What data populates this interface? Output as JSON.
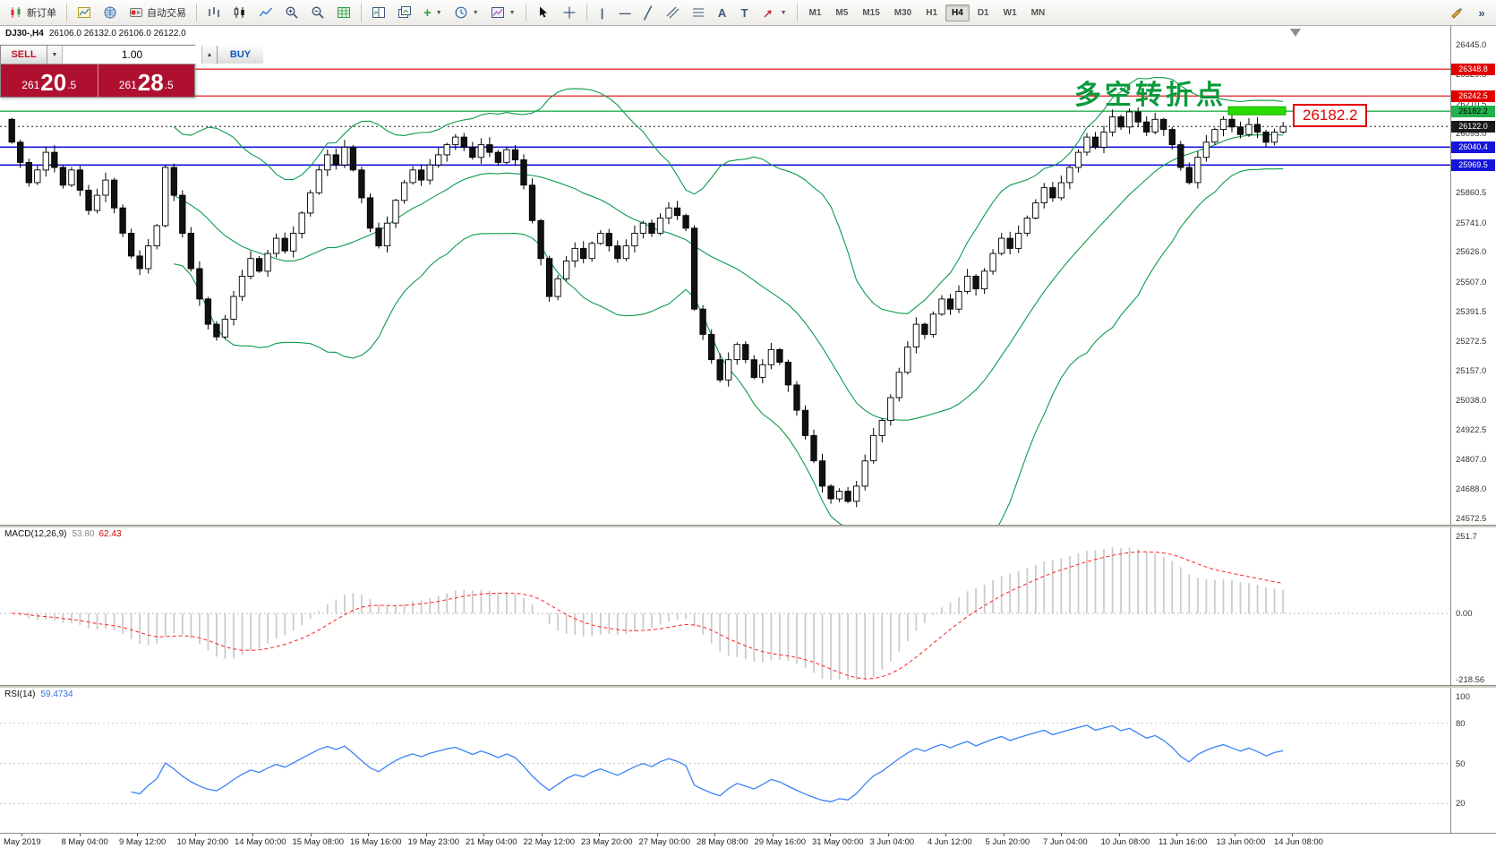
{
  "toolbar": {
    "new_order_label": "新订单",
    "autotrading_label": "自动交易",
    "text_tool": "A",
    "label_tool": "T",
    "timeframes": [
      "M1",
      "M5",
      "M15",
      "M30",
      "H1",
      "H4",
      "D1",
      "W1",
      "MN"
    ],
    "active_timeframe": "H4"
  },
  "chart_header": {
    "symbol": "DJ30-,H4",
    "ohlc": "26106.0 26132.0 26106.0 26122.0"
  },
  "trade_panel": {
    "sell_label": "SELL",
    "buy_label": "BUY",
    "lot": "1.00",
    "sell_price": {
      "small": "261",
      "big": "20",
      "dec": ".5"
    },
    "buy_price": {
      "small": "261",
      "big": "28",
      "dec": ".5"
    }
  },
  "annotation": {
    "text": "多空转折点",
    "price_tag": "26182.2"
  },
  "price_axis": {
    "ticks": [
      "26445.0",
      "26329.5",
      "26210.5",
      "26095.0",
      "25860.5",
      "25741.0",
      "25626.0",
      "25507.0",
      "25391.5",
      "25272.5",
      "25157.0",
      "25038.0",
      "24922.5",
      "24807.0",
      "24688.0",
      "24572.5"
    ]
  },
  "levels": [
    {
      "label": "26348.8",
      "price": 26348.8,
      "type": "resistance",
      "color": "#e10000",
      "badge_text": "#ffffff",
      "line": "solid"
    },
    {
      "label": "26242.5",
      "price": 26242.5,
      "type": "resistance",
      "color": "#e10000",
      "badge_text": "#ffffff",
      "line": "solid"
    },
    {
      "label": "26182.2",
      "price": 26182.2,
      "type": "key-level",
      "color": "#22b14c",
      "badge_text": "#000000",
      "line": "solid"
    },
    {
      "label": "26122.0",
      "price": 26122.0,
      "type": "current-price",
      "color": "#1a1a1a",
      "badge_text": "#ffffff",
      "line": "dotted"
    },
    {
      "label": "26040.4",
      "price": 26040.4,
      "type": "support",
      "color": "#1414dc",
      "badge_text": "#ffffff",
      "line": "solid"
    },
    {
      "label": "25969.5",
      "price": 25969.5,
      "type": "support",
      "color": "#1414dc",
      "badge_text": "#ffffff",
      "line": "solid"
    }
  ],
  "indicators": {
    "macd": {
      "name": "MACD(12,26,9)",
      "value1": "53.80",
      "value2": "62.43",
      "axis": [
        "251.7",
        "0.00",
        "-218.56"
      ],
      "axis_values": [
        251.7,
        0,
        -218.56
      ]
    },
    "rsi": {
      "name": "RSI(14)",
      "value": "59.4734",
      "axis": [
        "100",
        "80",
        "50",
        "20"
      ],
      "axis_values": [
        100,
        80,
        50,
        20
      ],
      "levels": [
        80,
        50,
        20
      ]
    }
  },
  "time_axis": [
    "May 2019",
    "8 May 04:00",
    "9 May 12:00",
    "10 May 20:00",
    "14 May 00:00",
    "15 May 08:00",
    "16 May 16:00",
    "19 May 23:00",
    "21 May 04:00",
    "22 May 12:00",
    "23 May 20:00",
    "27 May 00:00",
    "28 May 08:00",
    "29 May 16:00",
    "31 May 00:00",
    "3 Jun 04:00",
    "4 Jun 12:00",
    "5 Jun 20:00",
    "7 Jun 04:00",
    "10 Jun 08:00",
    "11 Jun 16:00",
    "13 Jun 00:00",
    "14 Jun 08:00"
  ],
  "chart_data": {
    "type": "candlestick",
    "symbol": "DJ30-",
    "timeframe": "H4",
    "open_first": 26150,
    "price_axis_range": [
      24550,
      26510
    ],
    "closes": [
      26060,
      25980,
      25900,
      25950,
      26020,
      25960,
      25890,
      25950,
      25870,
      25790,
      25850,
      25910,
      25800,
      25700,
      25610,
      25560,
      25650,
      25730,
      25960,
      25850,
      25700,
      25560,
      25440,
      25340,
      25290,
      25360,
      25450,
      25530,
      25600,
      25550,
      25620,
      25680,
      25630,
      25700,
      25780,
      25860,
      25950,
      26010,
      25970,
      26040,
      25950,
      25840,
      25720,
      25650,
      25740,
      25830,
      25900,
      25950,
      25910,
      25970,
      26010,
      26050,
      26080,
      26040,
      26000,
      26050,
      26020,
      25980,
      26030,
      25990,
      25890,
      25750,
      25600,
      25450,
      25520,
      25590,
      25640,
      25600,
      25660,
      25700,
      25650,
      25600,
      25650,
      25700,
      25740,
      25700,
      25760,
      25800,
      25770,
      25720,
      25400,
      25300,
      25200,
      25120,
      25200,
      25260,
      25200,
      25130,
      25180,
      25240,
      25190,
      25100,
      25000,
      24900,
      24800,
      24700,
      24650,
      24680,
      24640,
      24700,
      24800,
      24900,
      24960,
      25050,
      25150,
      25250,
      25340,
      25300,
      25380,
      25440,
      25400,
      25470,
      25530,
      25480,
      25550,
      25620,
      25680,
      25640,
      25700,
      25760,
      25820,
      25880,
      25840,
      25900,
      25960,
      26020,
      26080,
      26040,
      26100,
      26160,
      26120,
      26180,
      26140,
      26100,
      26150,
      26110,
      26050,
      25960,
      25900,
      26000,
      26060,
      26110,
      26150,
      26120,
      26090,
      26130,
      26100,
      26060,
      26100,
      26122
    ]
  },
  "colors": {
    "bollinger": "#0b9b4b",
    "candle_up": "#ffffff",
    "candle_down": "#111111",
    "candle_outline": "#000000",
    "macd_hist": "#c9c9c9",
    "macd_signal": "#ff2020",
    "rsi_line": "#3b82f6",
    "highlight": "#2bdc00",
    "trade_red": "#b01030"
  }
}
